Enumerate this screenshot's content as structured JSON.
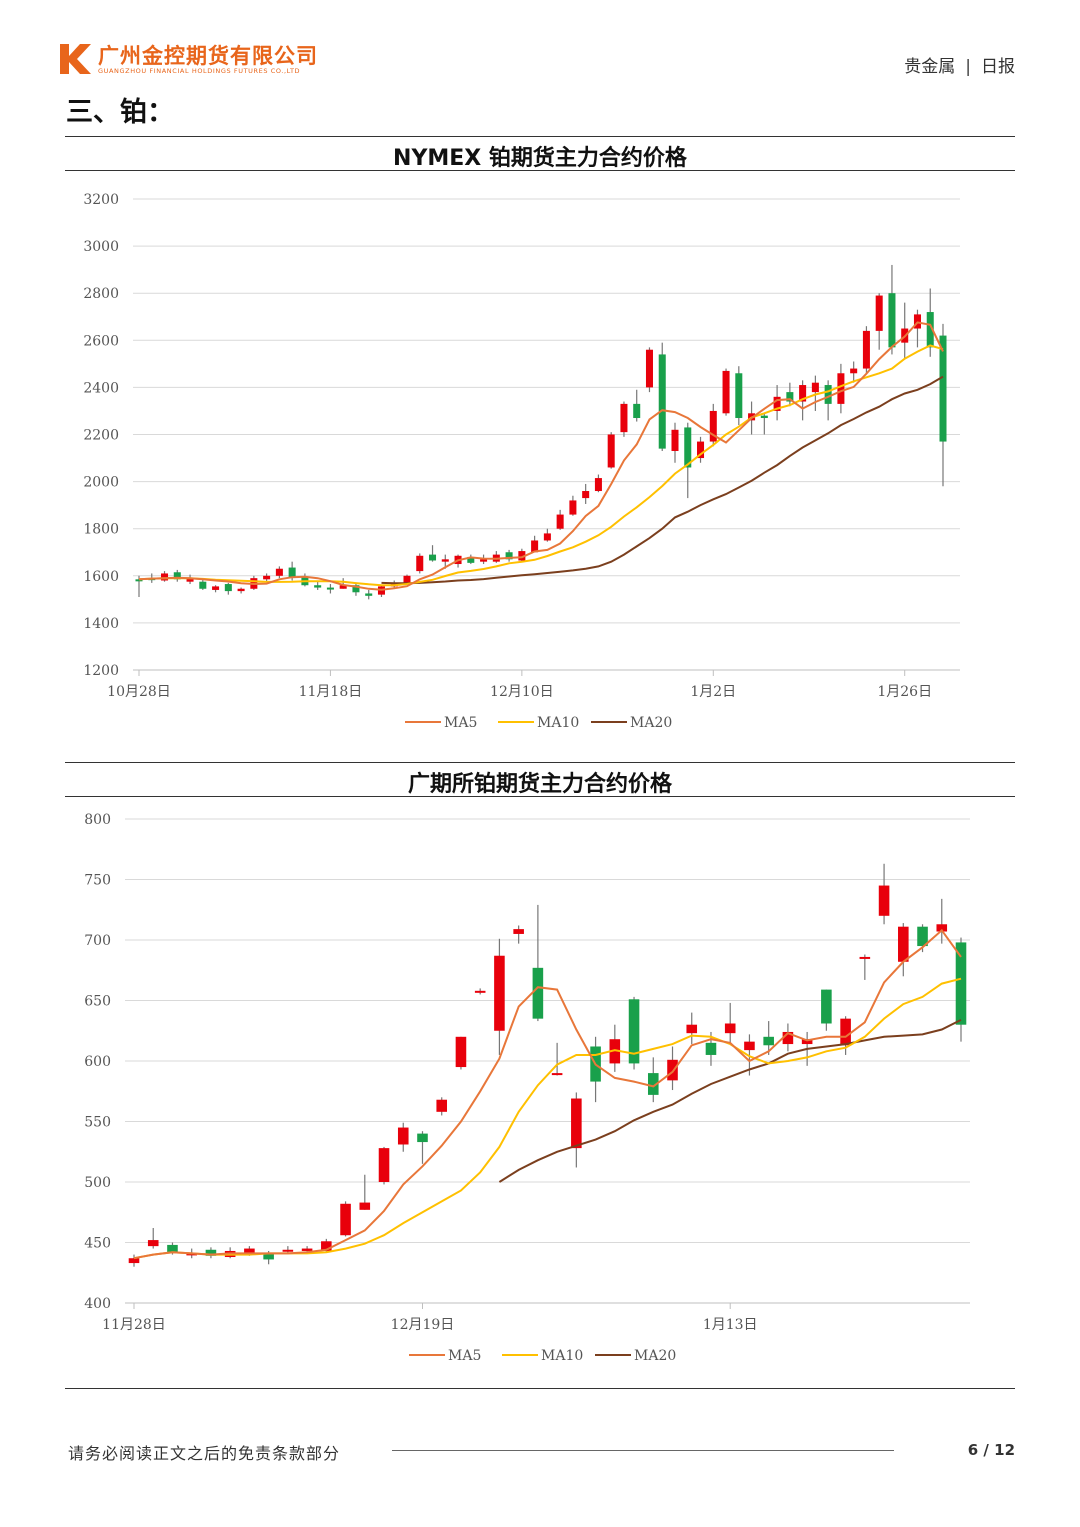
{
  "header": {
    "company_cn": "广州金控期货有限公司",
    "company_en": "GUANGZHOU FINANCIAL HOLDINGS FUTURES CO.,LTD",
    "logo_letter": "K",
    "category": "贵金属",
    "separator": "|",
    "report_type": "日报"
  },
  "section_title": "三、铂：",
  "colors": {
    "up": "#e8000b",
    "down": "#19a04b",
    "ma5": "#e8773a",
    "ma10": "#ffc000",
    "ma20": "#7b3f1e",
    "grid": "#d9d9d9"
  },
  "chart_data": [
    {
      "type": "candlestick",
      "title": "NYMEX 铂期货主力合约价格",
      "ylim": [
        1200,
        3200
      ],
      "yticks": [
        "1200",
        "1400",
        "1600",
        "1800",
        "2000",
        "2200",
        "2400",
        "2600",
        "2800",
        "3000",
        "3200"
      ],
      "xticks": [
        {
          "label": "10月28日",
          "index": 0
        },
        {
          "label": "11月18日",
          "index": 15
        },
        {
          "label": "12月10日",
          "index": 30
        },
        {
          "label": "1月2日",
          "index": 45
        },
        {
          "label": "1月26日",
          "index": 60
        }
      ],
      "legend": [
        "MA5",
        "MA10",
        "MA20"
      ],
      "candles": [
        [
          1585,
          1580,
          1600,
          1510
        ],
        [
          1590,
          1585,
          1610,
          1570
        ],
        [
          1580,
          1610,
          1620,
          1575
        ],
        [
          1615,
          1585,
          1625,
          1575
        ],
        [
          1575,
          1590,
          1605,
          1565
        ],
        [
          1575,
          1545,
          1585,
          1540
        ],
        [
          1540,
          1555,
          1560,
          1530
        ],
        [
          1565,
          1535,
          1570,
          1520
        ],
        [
          1535,
          1545,
          1550,
          1525
        ],
        [
          1545,
          1590,
          1600,
          1540
        ],
        [
          1585,
          1600,
          1610,
          1575
        ],
        [
          1600,
          1630,
          1640,
          1590
        ],
        [
          1635,
          1595,
          1660,
          1580
        ],
        [
          1595,
          1560,
          1610,
          1555
        ],
        [
          1560,
          1550,
          1580,
          1540
        ],
        [
          1550,
          1545,
          1565,
          1525
        ],
        [
          1545,
          1560,
          1590,
          1545
        ],
        [
          1560,
          1530,
          1570,
          1515
        ],
        [
          1525,
          1515,
          1540,
          1500
        ],
        [
          1520,
          1555,
          1560,
          1510
        ],
        [
          1555,
          1570,
          1580,
          1550
        ],
        [
          1570,
          1600,
          1605,
          1565
        ],
        [
          1620,
          1685,
          1695,
          1610
        ],
        [
          1690,
          1665,
          1730,
          1660
        ],
        [
          1660,
          1670,
          1690,
          1630
        ],
        [
          1650,
          1685,
          1690,
          1635
        ],
        [
          1680,
          1655,
          1690,
          1650
        ],
        [
          1660,
          1670,
          1690,
          1650
        ],
        [
          1660,
          1690,
          1705,
          1655
        ],
        [
          1700,
          1670,
          1710,
          1660
        ],
        [
          1665,
          1705,
          1715,
          1660
        ],
        [
          1700,
          1750,
          1770,
          1700
        ],
        [
          1750,
          1780,
          1800,
          1745
        ],
        [
          1800,
          1860,
          1880,
          1795
        ],
        [
          1860,
          1920,
          1940,
          1855
        ],
        [
          1930,
          1960,
          1990,
          1905
        ],
        [
          1960,
          2015,
          2030,
          1955
        ],
        [
          2060,
          2200,
          2210,
          2055
        ],
        [
          2210,
          2330,
          2340,
          2190
        ],
        [
          2330,
          2270,
          2390,
          2255
        ],
        [
          2400,
          2560,
          2570,
          2380
        ],
        [
          2540,
          2140,
          2590,
          2130
        ],
        [
          2130,
          2220,
          2250,
          2080
        ],
        [
          2230,
          2060,
          2250,
          1930
        ],
        [
          2100,
          2170,
          2190,
          2080
        ],
        [
          2170,
          2300,
          2330,
          2150
        ],
        [
          2290,
          2470,
          2480,
          2280
        ],
        [
          2460,
          2270,
          2490,
          2240
        ],
        [
          2260,
          2290,
          2340,
          2200
        ],
        [
          2280,
          2270,
          2290,
          2200
        ],
        [
          2300,
          2360,
          2410,
          2260
        ],
        [
          2380,
          2340,
          2420,
          2320
        ],
        [
          2340,
          2410,
          2430,
          2260
        ],
        [
          2380,
          2420,
          2450,
          2300
        ],
        [
          2410,
          2330,
          2430,
          2260
        ],
        [
          2330,
          2460,
          2500,
          2290
        ],
        [
          2460,
          2480,
          2510,
          2420
        ],
        [
          2480,
          2640,
          2660,
          2460
        ],
        [
          2640,
          2790,
          2800,
          2560
        ],
        [
          2800,
          2570,
          2920,
          2540
        ],
        [
          2590,
          2650,
          2760,
          2520
        ],
        [
          2650,
          2710,
          2730,
          2570
        ],
        [
          2720,
          2570,
          2820,
          2530
        ],
        [
          2620,
          2170,
          2670,
          1980
        ]
      ],
      "ma5": [
        1585,
        1588,
        1590,
        1592,
        1590,
        1585,
        1580,
        1576,
        1568,
        1565,
        1567,
        1585,
        1594,
        1596,
        1590,
        1577,
        1561,
        1554,
        1545,
        1541,
        1547,
        1556,
        1585,
        1605,
        1636,
        1666,
        1678,
        1673,
        1672,
        1676,
        1679,
        1703,
        1710,
        1737,
        1790,
        1854,
        1897,
        1990,
        2090,
        2158,
        2264,
        2303,
        2295,
        2270,
        2232,
        2198,
        2166,
        2218,
        2270,
        2309,
        2346,
        2350,
        2310,
        2338,
        2360,
        2384,
        2402,
        2458,
        2520,
        2572,
        2616,
        2676,
        2666,
        2553
      ],
      "ma10": [
        1585,
        1588,
        1590,
        1590,
        1590,
        1587,
        1583,
        1581,
        1579,
        1577,
        1574,
        1574,
        1575,
        1577,
        1577,
        1577,
        1575,
        1569,
        1564,
        1560,
        1560,
        1565,
        1574,
        1583,
        1599,
        1614,
        1621,
        1629,
        1640,
        1653,
        1660,
        1668,
        1684,
        1703,
        1721,
        1745,
        1772,
        1808,
        1852,
        1891,
        1934,
        1981,
        2034,
        2073,
        2116,
        2156,
        2200,
        2233,
        2272,
        2290,
        2310,
        2325,
        2350,
        2370,
        2383,
        2405,
        2426,
        2443,
        2460,
        2480,
        2522,
        2552,
        2578,
        2562
      ],
      "ma20": [
        null,
        null,
        null,
        null,
        null,
        null,
        null,
        null,
        null,
        null,
        null,
        null,
        null,
        null,
        null,
        null,
        null,
        null,
        null,
        1570,
        1568,
        1568,
        1570,
        1573,
        1576,
        1580,
        1582,
        1586,
        1592,
        1597,
        1602,
        1607,
        1612,
        1617,
        1623,
        1630,
        1640,
        1660,
        1690,
        1725,
        1760,
        1800,
        1848,
        1872,
        1900,
        1925,
        1947,
        1975,
        2004,
        2038,
        2070,
        2109,
        2145,
        2175,
        2205,
        2240,
        2266,
        2294,
        2318,
        2350,
        2374,
        2390,
        2414,
        2446
      ]
    },
    {
      "type": "candlestick",
      "title": "广期所铂期货主力合约价格",
      "ylim": [
        400,
        800
      ],
      "yticks": [
        "400",
        "450",
        "500",
        "550",
        "600",
        "650",
        "700",
        "750",
        "800"
      ],
      "xticks": [
        {
          "label": "11月28日",
          "index": 0
        },
        {
          "label": "12月19日",
          "index": 15
        },
        {
          "label": "1月13日",
          "index": 31
        }
      ],
      "legend": [
        "MA5",
        "MA10",
        "MA20"
      ],
      "candles": [
        [
          433,
          437,
          440,
          430
        ],
        [
          447,
          452,
          462,
          445
        ],
        [
          448,
          442,
          450,
          440
        ],
        [
          441,
          441,
          445,
          437
        ],
        [
          444,
          439,
          446,
          437
        ],
        [
          438,
          443,
          446,
          437
        ],
        [
          441,
          445,
          447,
          439
        ],
        [
          441,
          436,
          443,
          432
        ],
        [
          443,
          444,
          447,
          441
        ],
        [
          443,
          445,
          447,
          441
        ],
        [
          443,
          451,
          453,
          442
        ],
        [
          456,
          482,
          484,
          455
        ],
        [
          477,
          483,
          506,
          477
        ],
        [
          500,
          528,
          529,
          498
        ],
        [
          531,
          545,
          549,
          525
        ],
        [
          540,
          533,
          542,
          515
        ],
        [
          558,
          568,
          570,
          555
        ],
        [
          595,
          620,
          620,
          593
        ],
        [
          657,
          658,
          660,
          655
        ],
        [
          625,
          687,
          701,
          605
        ],
        [
          705,
          709,
          712,
          697
        ],
        [
          677,
          635,
          729,
          633
        ],
        [
          590,
          590,
          615,
          588
        ],
        [
          528,
          569,
          574,
          512
        ],
        [
          612,
          583,
          620,
          566
        ],
        [
          598,
          618,
          630,
          591
        ],
        [
          651,
          598,
          653,
          593
        ],
        [
          590,
          572,
          603,
          566
        ],
        [
          584,
          601,
          612,
          576
        ],
        [
          623,
          630,
          640,
          614
        ],
        [
          615,
          605,
          624,
          596
        ],
        [
          623,
          631,
          648,
          615
        ],
        [
          609,
          616,
          622,
          588
        ],
        [
          620,
          613,
          633,
          605
        ],
        [
          614,
          624,
          631,
          608
        ],
        [
          614,
          618,
          624,
          596
        ],
        [
          659,
          631,
          659,
          625
        ],
        [
          613,
          635,
          637,
          605
        ],
        [
          686,
          686,
          688,
          667
        ],
        [
          720,
          745,
          763,
          713
        ],
        [
          682,
          711,
          714,
          670
        ],
        [
          711,
          695,
          713,
          690
        ],
        [
          707,
          713,
          734,
          697
        ],
        [
          698,
          630,
          702,
          616
        ]
      ],
      "ma5": [
        437,
        440,
        442,
        441,
        440,
        441,
        441,
        441,
        441,
        442,
        444,
        452,
        460,
        476,
        498,
        513,
        530,
        550,
        575,
        602,
        645,
        661,
        659,
        626,
        597,
        586,
        583,
        579,
        591,
        613,
        618,
        615,
        600,
        608,
        623,
        617,
        620,
        620,
        632,
        665,
        682,
        694,
        708,
        686
      ],
      "ma10": [
        437,
        440,
        442,
        441,
        440,
        440,
        440,
        441,
        441,
        441,
        442,
        445,
        449,
        456,
        466,
        475,
        484,
        493,
        508,
        529,
        558,
        580,
        597,
        605,
        605,
        609,
        606,
        610,
        614,
        621,
        620,
        614,
        604,
        598,
        600,
        603,
        608,
        611,
        620,
        635,
        647,
        653,
        664,
        668
      ],
      "ma20": [
        null,
        null,
        null,
        null,
        null,
        null,
        null,
        null,
        null,
        null,
        null,
        null,
        null,
        null,
        null,
        null,
        null,
        null,
        null,
        500,
        510,
        518,
        525,
        530,
        535,
        542,
        551,
        558,
        564,
        573,
        581,
        587,
        593,
        598,
        606,
        610,
        612,
        614,
        617,
        620,
        621,
        622,
        626,
        634
      ]
    }
  ],
  "footer": {
    "disclaimer": "请务必阅读正文之后的免责条款部分",
    "page": "6 / 12"
  }
}
